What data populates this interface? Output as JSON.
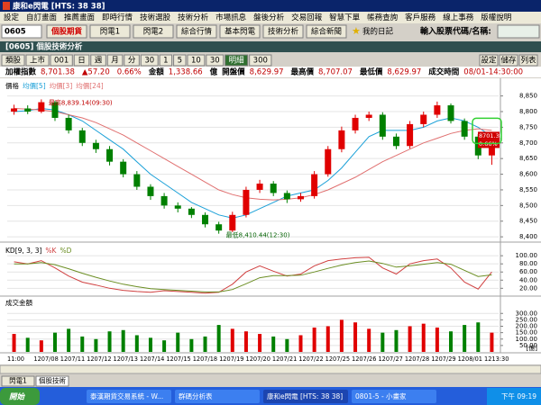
{
  "window": {
    "title": "康和e閃電 [HTS: 38 38]",
    "menu": [
      "設定",
      "自訂畫面",
      "推薦畫面",
      "即時行情",
      "技術選股",
      "技術分析",
      "市場訊息",
      "盤後分析",
      "交易回報",
      "智慧下單",
      "帳務查詢",
      "客戶服務",
      "線上事務",
      "版權說明"
    ],
    "toolbar": {
      "code": "0605",
      "buttons": [
        "個股期貨",
        "閃電1",
        "閃電2",
        "綜合行情",
        "基本閃電",
        "技術分析",
        "綜合新聞"
      ],
      "diary": "我的日記",
      "search_label": "輸入股票代碼/名稱:"
    }
  },
  "panel": {
    "title": "[0605] 個股技術分析",
    "controls": [
      "類股",
      "上市",
      "001",
      "日",
      "週",
      "月",
      "分",
      "30",
      "1",
      "5",
      "10",
      "30",
      "明細",
      "300"
    ],
    "right_buttons": [
      "設定",
      "儲存",
      "列表"
    ],
    "info": [
      "加權指數",
      "8,701.38",
      "▲57.20",
      "0.66%",
      "金額",
      "1,338.66",
      "億",
      "開盤價",
      "8,629.97",
      "最高價",
      "8,707.07",
      "最低價",
      "8,629.97",
      "成交時間",
      "08/01-14:30:00"
    ]
  },
  "chart_data": [
    {
      "type": "candlestick",
      "legend_labels": [
        "價格",
        "均價[5]",
        "均價[3]",
        "均價[24]"
      ],
      "open": [
        8800,
        8810,
        8800,
        8830,
        8780,
        8740,
        8700,
        8680,
        8640,
        8600,
        8560,
        8530,
        8500,
        8490,
        8470,
        8440,
        8420,
        8470,
        8550,
        8570,
        8540,
        8520,
        8530,
        8600,
        8680,
        8740,
        8780,
        8790,
        8720,
        8690,
        8760,
        8790,
        8820,
        8770,
        8720,
        8660
      ],
      "high": [
        8822,
        8820,
        8839,
        8835,
        8790,
        8748,
        8710,
        8690,
        8648,
        8610,
        8568,
        8540,
        8510,
        8495,
        8478,
        8448,
        8480,
        8560,
        8582,
        8578,
        8548,
        8540,
        8610,
        8690,
        8752,
        8790,
        8800,
        8798,
        8730,
        8770,
        8800,
        8832,
        8826,
        8778,
        8728,
        8707
      ],
      "low": [
        8790,
        8792,
        8795,
        8770,
        8730,
        8690,
        8668,
        8628,
        8590,
        8550,
        8518,
        8490,
        8478,
        8460,
        8430,
        8410,
        8415,
        8462,
        8540,
        8530,
        8508,
        8512,
        8522,
        8592,
        8670,
        8730,
        8770,
        8710,
        8680,
        8682,
        8750,
        8780,
        8762,
        8710,
        8648,
        8630
      ],
      "close": [
        8810,
        8800,
        8830,
        8780,
        8740,
        8700,
        8680,
        8640,
        8600,
        8560,
        8530,
        8500,
        8490,
        8470,
        8440,
        8420,
        8470,
        8550,
        8570,
        8540,
        8520,
        8530,
        8600,
        8680,
        8740,
        8780,
        8790,
        8720,
        8690,
        8760,
        8790,
        8820,
        8770,
        8720,
        8660,
        8701
      ],
      "up_color": "#e00000",
      "down_color": "#008000",
      "ma": [
        {
          "color": "#1aa0d8",
          "values": [
            8800,
            8803,
            8810,
            8805,
            8790,
            8770,
            8740,
            8710,
            8680,
            8640,
            8600,
            8570,
            8540,
            8510,
            8490,
            8470,
            8460,
            8470,
            8490,
            8510,
            8530,
            8540,
            8550,
            8580,
            8620,
            8670,
            8720,
            8740,
            8740,
            8740,
            8750,
            8770,
            8780,
            8770,
            8750,
            8720
          ]
        },
        {
          "color": "#e07070",
          "values": [
            8810,
            8808,
            8805,
            8800,
            8790,
            8780,
            8765,
            8745,
            8725,
            8700,
            8675,
            8650,
            8625,
            8600,
            8575,
            8550,
            8535,
            8525,
            8520,
            8518,
            8520,
            8525,
            8535,
            8550,
            8570,
            8590,
            8615,
            8640,
            8660,
            8680,
            8700,
            8715,
            8730,
            8740,
            8745,
            8740
          ]
        }
      ],
      "annotations": [
        "最高8,839.14(09:30)",
        "最低8,410.44(12:30)"
      ],
      "last_labels": [
        "8701.38",
        "0.66%"
      ],
      "ylim": [
        8386,
        8892
      ],
      "yticks": [
        {
          "value": 8850,
          "label": "8,850"
        },
        {
          "value": 8800,
          "label": "8,800"
        },
        {
          "value": 8750,
          "label": "8,750"
        },
        {
          "value": 8700,
          "label": "8,700"
        },
        {
          "value": 8650,
          "label": "8,650"
        },
        {
          "value": 8600,
          "label": "8,600"
        },
        {
          "value": 8550,
          "label": "8,550"
        },
        {
          "value": 8500,
          "label": "8,500"
        },
        {
          "value": 8450,
          "label": "8,450"
        },
        {
          "value": 8400,
          "label": "8,400"
        }
      ]
    },
    {
      "type": "line",
      "title": "KD[9, 3, 3]",
      "series": [
        {
          "name": "%K",
          "color": "#d04040",
          "values": [
            85,
            80,
            88,
            70,
            50,
            35,
            28,
            20,
            15,
            12,
            10,
            14,
            12,
            10,
            8,
            10,
            30,
            60,
            75,
            62,
            50,
            55,
            75,
            88,
            92,
            95,
            96,
            70,
            55,
            80,
            88,
            92,
            70,
            35,
            18,
            60
          ]
        },
        {
          "name": "%D",
          "color": "#6b8e23",
          "values": [
            80,
            80,
            83,
            78,
            68,
            57,
            47,
            38,
            30,
            24,
            19,
            17,
            15,
            13,
            11,
            11,
            17,
            31,
            46,
            51,
            51,
            52,
            60,
            69,
            77,
            83,
            87,
            81,
            72,
            75,
            79,
            83,
            79,
            64,
            49,
            53
          ]
        }
      ],
      "ylim": [
        3,
        118
      ],
      "yticks": [
        {
          "value": 100,
          "label": "100.00"
        },
        {
          "value": 80,
          "label": "80.00"
        },
        {
          "value": 60,
          "label": "60.00"
        },
        {
          "value": 40,
          "label": "40.00"
        },
        {
          "value": 20,
          "label": "20.00"
        }
      ]
    },
    {
      "type": "bar",
      "title": "成交金額",
      "unit": "[億]",
      "values": [
        140,
        110,
        90,
        150,
        180,
        120,
        100,
        160,
        170,
        130,
        110,
        90,
        150,
        100,
        120,
        210,
        180,
        160,
        140,
        120,
        100,
        130,
        190,
        200,
        250,
        230,
        180,
        150,
        170,
        200,
        220,
        190,
        160,
        210,
        230,
        150
      ],
      "ylim": [
        0,
        400
      ],
      "yticks": [
        {
          "value": 300,
          "label": "300.00"
        },
        {
          "value": 250,
          "label": "250.00"
        },
        {
          "value": 200,
          "label": "200.00"
        },
        {
          "value": 150,
          "label": "150.00"
        },
        {
          "value": 100,
          "label": "100.00"
        },
        {
          "value": 50,
          "label": "50.00"
        }
      ],
      "x_labels": [
        "11:00",
        "1207/08",
        "1207/11",
        "1207/12",
        "1207/13",
        "1207/14",
        "1207/15",
        "1207/18",
        "1207/19",
        "1207/20",
        "1207/21",
        "1207/22",
        "1207/25",
        "1207/26",
        "1207/27",
        "1207/28",
        "1207/29",
        "1208/01",
        "1213:30"
      ]
    }
  ],
  "status": {
    "tabs": [
      "閃電1",
      "個股技術"
    ]
  },
  "taskbar": {
    "start": "開始",
    "items": [
      "泰漢期貨交易系統 - W...",
      "群碼分析表",
      "康和e閃電 [HTS: 38 38]",
      "0801-5 - 小畫家"
    ],
    "clock": "下午 09:19"
  }
}
